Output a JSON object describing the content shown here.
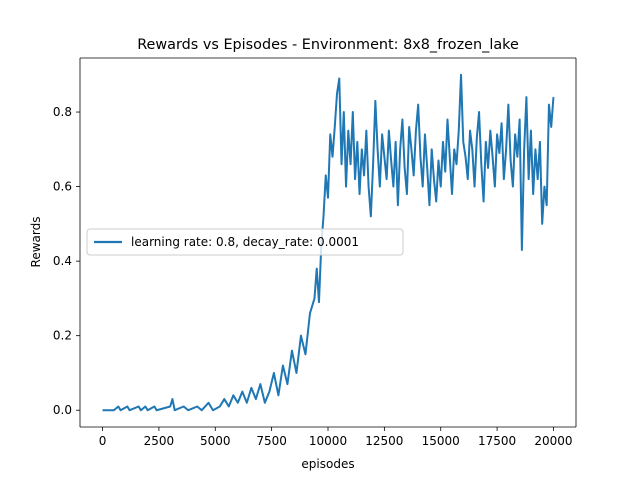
{
  "chart_data": {
    "type": "line",
    "title": "Rewards vs Episodes - Environment: 8x8_frozen_lake",
    "xlabel": "episodes",
    "ylabel": "Rewards",
    "xlim": [
      -1000,
      21000
    ],
    "ylim": [
      -0.045,
      0.945
    ],
    "grid": false,
    "legend_position": "center-left",
    "x_ticks": [
      0,
      2500,
      5000,
      7500,
      10000,
      12500,
      15000,
      17500,
      20000
    ],
    "x_tick_labels": [
      "0",
      "2500",
      "5000",
      "7500",
      "10000",
      "12500",
      "15000",
      "17500",
      "20000"
    ],
    "y_ticks": [
      0.0,
      0.2,
      0.4,
      0.6,
      0.8
    ],
    "y_tick_labels": [
      "0.0",
      "0.2",
      "0.4",
      "0.6",
      "0.8"
    ],
    "series": [
      {
        "name": "learning rate: 0.8, decay_rate: 0.0001",
        "color": "#1f77b4",
        "points": [
          [
            0,
            0.0
          ],
          [
            500,
            0.0
          ],
          [
            700,
            0.01
          ],
          [
            800,
            0.0
          ],
          [
            1100,
            0.01
          ],
          [
            1200,
            0.0
          ],
          [
            1600,
            0.01
          ],
          [
            1700,
            0.0
          ],
          [
            1900,
            0.01
          ],
          [
            2000,
            0.0
          ],
          [
            2300,
            0.01
          ],
          [
            2400,
            0.0
          ],
          [
            3000,
            0.01
          ],
          [
            3100,
            0.03
          ],
          [
            3200,
            0.0
          ],
          [
            3600,
            0.01
          ],
          [
            3800,
            0.0
          ],
          [
            4200,
            0.01
          ],
          [
            4400,
            0.0
          ],
          [
            4700,
            0.02
          ],
          [
            4900,
            0.0
          ],
          [
            5200,
            0.01
          ],
          [
            5400,
            0.03
          ],
          [
            5600,
            0.01
          ],
          [
            5800,
            0.04
          ],
          [
            6000,
            0.02
          ],
          [
            6200,
            0.05
          ],
          [
            6400,
            0.02
          ],
          [
            6600,
            0.06
          ],
          [
            6800,
            0.03
          ],
          [
            7000,
            0.07
          ],
          [
            7200,
            0.02
          ],
          [
            7400,
            0.05
          ],
          [
            7600,
            0.1
          ],
          [
            7800,
            0.04
          ],
          [
            8000,
            0.12
          ],
          [
            8200,
            0.07
          ],
          [
            8400,
            0.16
          ],
          [
            8600,
            0.1
          ],
          [
            8800,
            0.2
          ],
          [
            9000,
            0.15
          ],
          [
            9200,
            0.26
          ],
          [
            9400,
            0.3
          ],
          [
            9500,
            0.38
          ],
          [
            9600,
            0.29
          ],
          [
            9700,
            0.44
          ],
          [
            9800,
            0.52
          ],
          [
            9900,
            0.63
          ],
          [
            10000,
            0.57
          ],
          [
            10100,
            0.74
          ],
          [
            10200,
            0.68
          ],
          [
            10300,
            0.76
          ],
          [
            10400,
            0.85
          ],
          [
            10500,
            0.89
          ],
          [
            10600,
            0.66
          ],
          [
            10700,
            0.8
          ],
          [
            10800,
            0.6
          ],
          [
            10900,
            0.75
          ],
          [
            11000,
            0.66
          ],
          [
            11100,
            0.8
          ],
          [
            11200,
            0.62
          ],
          [
            11300,
            0.72
          ],
          [
            11400,
            0.58
          ],
          [
            11500,
            0.7
          ],
          [
            11600,
            0.63
          ],
          [
            11700,
            0.75
          ],
          [
            11800,
            0.6
          ],
          [
            11900,
            0.52
          ],
          [
            12000,
            0.66
          ],
          [
            12100,
            0.83
          ],
          [
            12200,
            0.7
          ],
          [
            12300,
            0.6
          ],
          [
            12400,
            0.74
          ],
          [
            12500,
            0.68
          ],
          [
            12600,
            0.62
          ],
          [
            12700,
            0.75
          ],
          [
            12800,
            0.67
          ],
          [
            12900,
            0.6
          ],
          [
            13000,
            0.72
          ],
          [
            13100,
            0.55
          ],
          [
            13200,
            0.7
          ],
          [
            13300,
            0.78
          ],
          [
            13400,
            0.65
          ],
          [
            13500,
            0.58
          ],
          [
            13600,
            0.76
          ],
          [
            13700,
            0.7
          ],
          [
            13800,
            0.63
          ],
          [
            13900,
            0.75
          ],
          [
            14000,
            0.82
          ],
          [
            14100,
            0.68
          ],
          [
            14200,
            0.6
          ],
          [
            14300,
            0.74
          ],
          [
            14400,
            0.65
          ],
          [
            14500,
            0.55
          ],
          [
            14600,
            0.7
          ],
          [
            14700,
            0.62
          ],
          [
            14800,
            0.56
          ],
          [
            14900,
            0.67
          ],
          [
            15000,
            0.6
          ],
          [
            15100,
            0.72
          ],
          [
            15200,
            0.64
          ],
          [
            15300,
            0.78
          ],
          [
            15400,
            0.68
          ],
          [
            15500,
            0.58
          ],
          [
            15600,
            0.7
          ],
          [
            15700,
            0.66
          ],
          [
            15800,
            0.75
          ],
          [
            15900,
            0.9
          ],
          [
            16000,
            0.72
          ],
          [
            16100,
            0.68
          ],
          [
            16200,
            0.62
          ],
          [
            16300,
            0.75
          ],
          [
            16400,
            0.7
          ],
          [
            16500,
            0.6
          ],
          [
            16600,
            0.73
          ],
          [
            16700,
            0.8
          ],
          [
            16800,
            0.66
          ],
          [
            16900,
            0.56
          ],
          [
            17000,
            0.72
          ],
          [
            17100,
            0.65
          ],
          [
            17200,
            0.75
          ],
          [
            17300,
            0.68
          ],
          [
            17400,
            0.6
          ],
          [
            17500,
            0.74
          ],
          [
            17600,
            0.69
          ],
          [
            17700,
            0.77
          ],
          [
            17800,
            0.62
          ],
          [
            17900,
            0.7
          ],
          [
            18000,
            0.82
          ],
          [
            18100,
            0.67
          ],
          [
            18200,
            0.6
          ],
          [
            18300,
            0.74
          ],
          [
            18400,
            0.68
          ],
          [
            18500,
            0.78
          ],
          [
            18600,
            0.43
          ],
          [
            18700,
            0.7
          ],
          [
            18800,
            0.84
          ],
          [
            18900,
            0.62
          ],
          [
            19000,
            0.75
          ],
          [
            19100,
            0.58
          ],
          [
            19200,
            0.7
          ],
          [
            19300,
            0.62
          ],
          [
            19400,
            0.72
          ],
          [
            19500,
            0.5
          ],
          [
            19600,
            0.6
          ],
          [
            19700,
            0.55
          ],
          [
            19800,
            0.82
          ],
          [
            19900,
            0.76
          ],
          [
            20000,
            0.84
          ]
        ]
      }
    ]
  }
}
